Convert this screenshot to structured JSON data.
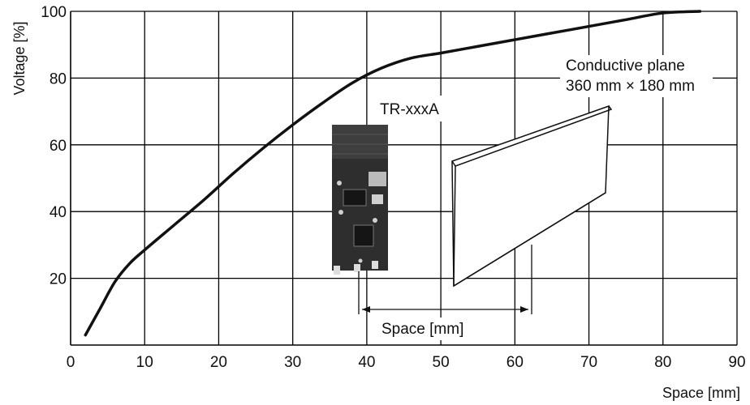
{
  "chart_data": {
    "type": "line",
    "xlabel": "Space [mm]",
    "ylabel": "Voltage [%]",
    "xlim": [
      0,
      90
    ],
    "ylim": [
      0,
      100
    ],
    "x_ticks": [
      0,
      10,
      20,
      30,
      40,
      50,
      60,
      70,
      80,
      90
    ],
    "y_ticks": [
      20,
      40,
      60,
      80,
      100
    ],
    "grid": true,
    "series": [
      {
        "x": [
          2,
          4,
          6,
          8,
          10,
          14,
          18,
          22,
          26,
          30,
          34,
          38,
          42,
          46,
          50,
          55,
          60,
          65,
          70,
          75,
          80,
          85
        ],
        "y": [
          3,
          11,
          19,
          24.5,
          28.5,
          36,
          43.5,
          51.5,
          59,
          66,
          72.5,
          78.5,
          83,
          86,
          87.5,
          89.5,
          91.5,
          93.5,
          95.5,
          97.5,
          99.5,
          100
        ]
      }
    ],
    "annotations": {
      "module_label": "TR-xxxA",
      "plane_label_line1": "Conductive plane",
      "plane_label_line2": "360 mm × 180 mm",
      "space_label": "Space [mm]"
    }
  }
}
